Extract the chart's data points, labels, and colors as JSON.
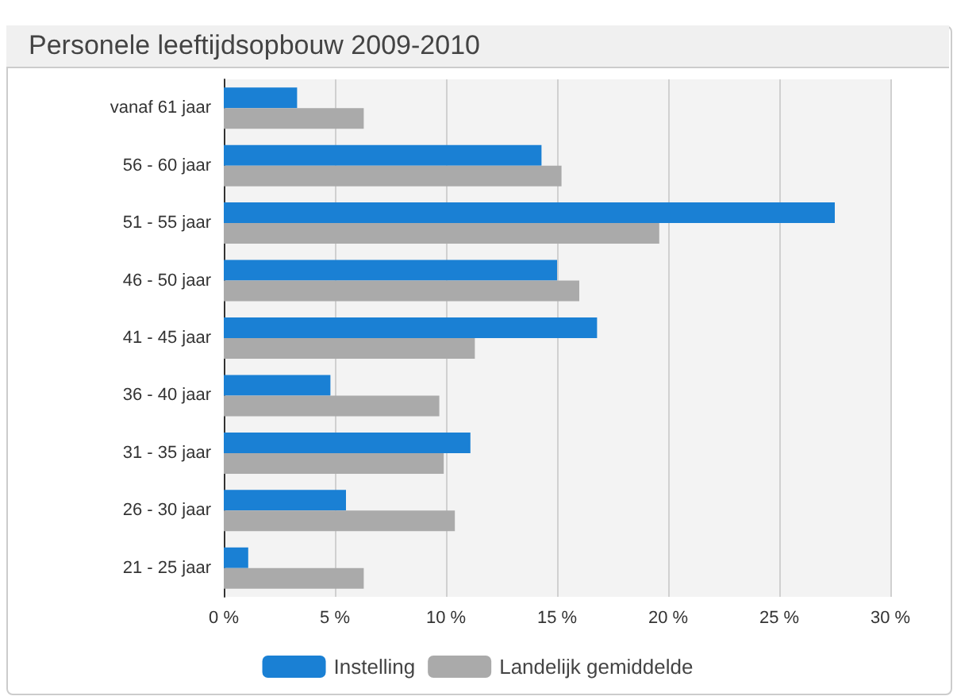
{
  "chart_data": {
    "type": "bar",
    "orientation": "horizontal",
    "title": "Personele leeftijdsopbouw 2009-2010",
    "categories": [
      "vanaf 61 jaar",
      "56 - 60 jaar",
      "51 - 55 jaar",
      "46 - 50 jaar",
      "41 - 45 jaar",
      "36 - 40 jaar",
      "31 - 35 jaar",
      "26 - 30 jaar",
      "21 - 25 jaar"
    ],
    "series": [
      {
        "name": "Instelling",
        "color": "#1a80d4",
        "values": [
          3.3,
          14.3,
          27.5,
          15.0,
          16.8,
          4.8,
          11.1,
          5.5,
          1.1
        ]
      },
      {
        "name": "Landelijk gemiddelde",
        "color": "#aaaaaa",
        "values": [
          6.3,
          15.2,
          19.6,
          16.0,
          11.3,
          9.7,
          9.9,
          10.4,
          6.3
        ]
      }
    ],
    "xlim": [
      0,
      30
    ],
    "xticks": [
      {
        "value": 0,
        "label": "0 %"
      },
      {
        "value": 5,
        "label": "5 %"
      },
      {
        "value": 10,
        "label": "10 %"
      },
      {
        "value": 15,
        "label": "15 %"
      },
      {
        "value": 20,
        "label": "20 %"
      },
      {
        "value": 25,
        "label": "25 %"
      },
      {
        "value": 30,
        "label": "30 %"
      }
    ],
    "grid": "x",
    "legend": "bottom"
  }
}
